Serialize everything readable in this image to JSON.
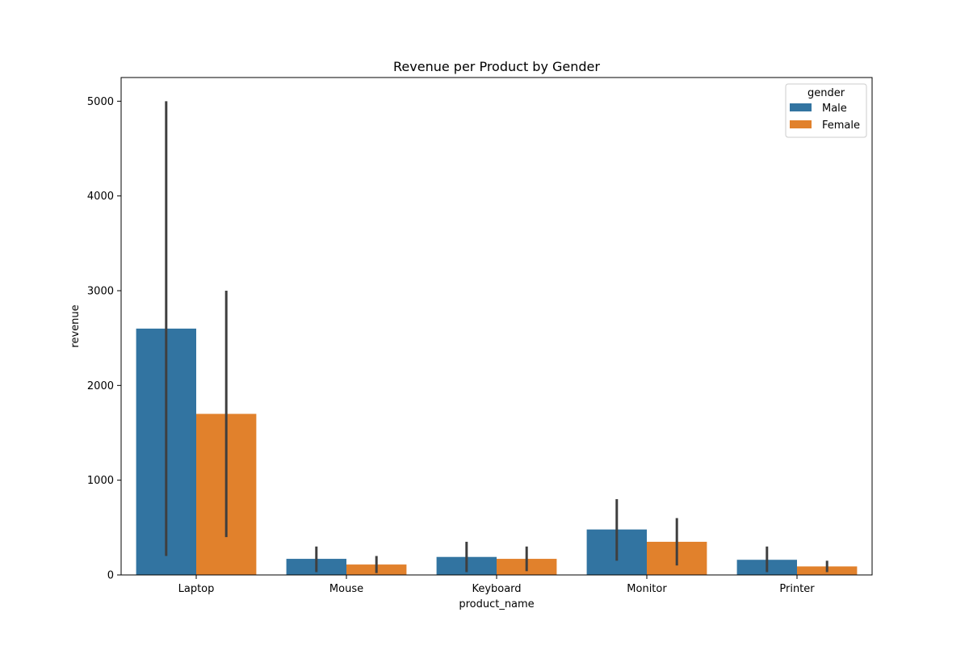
{
  "chart_data": {
    "type": "bar",
    "title": "Revenue per Product by Gender",
    "xlabel": "product_name",
    "ylabel": "revenue",
    "categories": [
      "Laptop",
      "Mouse",
      "Keyboard",
      "Monitor",
      "Printer"
    ],
    "ylim": [
      0,
      5250
    ],
    "yticks": [
      0,
      1000,
      2000,
      3000,
      4000,
      5000
    ],
    "grid": false,
    "legend": {
      "title": "gender",
      "placement": "top-right"
    },
    "series": [
      {
        "name": "Male",
        "color": "#3274a1",
        "values": [
          2600,
          170,
          190,
          480,
          160
        ],
        "error_low": [
          200,
          30,
          30,
          150,
          30
        ],
        "error_high": [
          5000,
          300,
          350,
          800,
          300
        ]
      },
      {
        "name": "Female",
        "color": "#e1812c",
        "values": [
          1700,
          110,
          170,
          350,
          90
        ],
        "error_low": [
          400,
          20,
          40,
          100,
          30
        ],
        "error_high": [
          3000,
          200,
          300,
          600,
          150
        ]
      }
    ],
    "errorbar_color": "#3f3f3f"
  }
}
